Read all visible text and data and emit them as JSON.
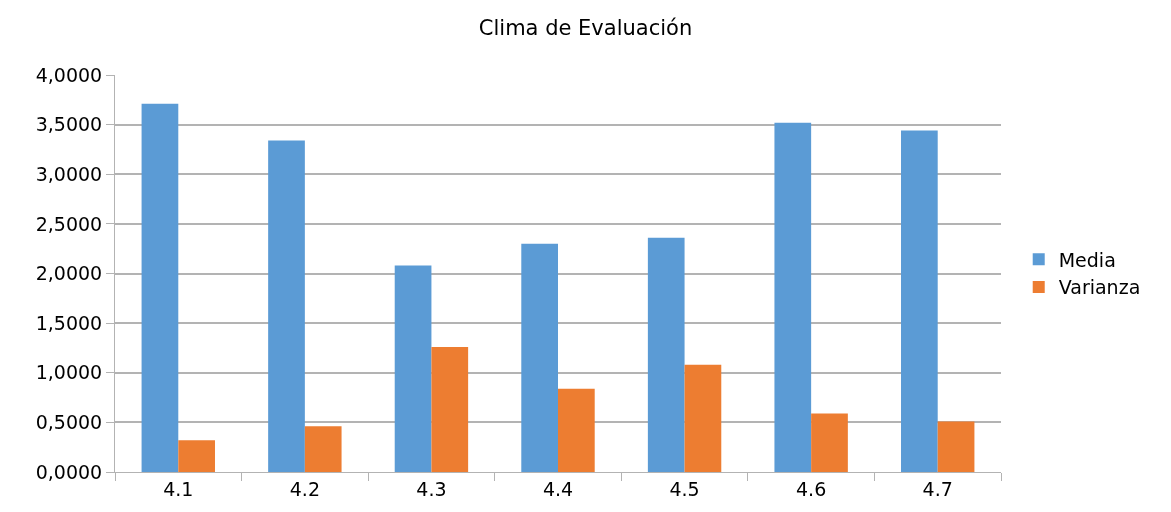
{
  "chart_data": {
    "type": "bar",
    "title": "Clima de Evaluación",
    "categories": [
      "4.1",
      "4.2",
      "4.3",
      "4.4",
      "4.5",
      "4.6",
      "4.7"
    ],
    "series": [
      {
        "name": "Media",
        "color": "#5b9bd5",
        "values": [
          3.71,
          3.34,
          2.08,
          2.3,
          2.36,
          3.52,
          3.44
        ]
      },
      {
        "name": "Varianza",
        "color": "#ed7d31",
        "values": [
          0.32,
          0.46,
          1.26,
          0.84,
          1.08,
          0.59,
          0.51
        ]
      }
    ],
    "ylim": [
      0,
      4
    ],
    "yticks": [
      {
        "value": 0,
        "label": "0,0000"
      },
      {
        "value": 0.5,
        "label": "0,5000"
      },
      {
        "value": 1,
        "label": "1,0000"
      },
      {
        "value": 1.5,
        "label": "1,5000"
      },
      {
        "value": 2,
        "label": "2,0000"
      },
      {
        "value": 2.5,
        "label": "2,5000"
      },
      {
        "value": 3,
        "label": "3,0000"
      },
      {
        "value": 3.5,
        "label": "3,5000"
      },
      {
        "value": 4,
        "label": "4,0000"
      }
    ],
    "grid": "y",
    "legend": "right"
  }
}
